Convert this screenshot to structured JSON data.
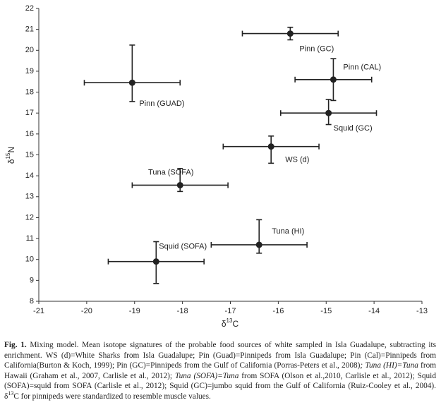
{
  "chart_data": {
    "type": "errorbar-scatter",
    "xlabel": {
      "symbol": "δ",
      "sup": "13",
      "rest": "C"
    },
    "ylabel": {
      "symbol": "δ",
      "sup": "15",
      "rest": "N"
    },
    "xlim": [
      -21,
      -13
    ],
    "xticks": [
      -21,
      -20,
      -19,
      -18,
      -17,
      -16,
      -15,
      -14,
      -13
    ],
    "ylim": [
      8,
      22
    ],
    "yticks": [
      8,
      9,
      10,
      11,
      12,
      13,
      14,
      15,
      16,
      17,
      18,
      19,
      20,
      21,
      22
    ],
    "color": "#222222",
    "points": [
      {
        "name": "Pinn (GC)",
        "x": -15.75,
        "y": 20.8,
        "xerr": 1.0,
        "yerr_minus": 0.3,
        "yerr_plus": 0.3
      },
      {
        "name": "Pinn (CAL)",
        "x": -14.85,
        "y": 18.6,
        "xerr": 0.8,
        "yerr_minus": 1.0,
        "yerr_plus": 1.0
      },
      {
        "name": "Pinn (GUAD)",
        "x": -19.05,
        "y": 18.45,
        "xerr": 1.0,
        "yerr_minus": 0.9,
        "yerr_plus": 1.8
      },
      {
        "name": "Squid (GC)",
        "x": -14.95,
        "y": 17.0,
        "xerr": 1.0,
        "yerr_minus": 0.55,
        "yerr_plus": 0.65
      },
      {
        "name": "WS (d)",
        "x": -16.15,
        "y": 15.4,
        "xerr": 1.0,
        "yerr_minus": 0.8,
        "yerr_plus": 0.5
      },
      {
        "name": "Tuna (SOFA)",
        "x": -18.05,
        "y": 13.55,
        "xerr": 1.0,
        "yerr_minus": 0.3,
        "yerr_plus": 0.8
      },
      {
        "name": "Tuna (HI)",
        "x": -16.4,
        "y": 10.7,
        "xerr": 1.0,
        "yerr_minus": 0.4,
        "yerr_plus": 1.2
      },
      {
        "name": "Squid (SOFA)",
        "x": -18.55,
        "y": 9.9,
        "xerr": 1.0,
        "yerr_minus": 1.05,
        "yerr_plus": 0.95
      }
    ]
  },
  "caption": [
    {
      "style": "bold",
      "text": "Fig. 1."
    },
    {
      "style": "normal",
      "text": " Mixing model. Mean isotope signatures of the probable food sources of white sampled in Isla Guadalupe, subtracting its enrichment. WS (d)=White Sharks from Isla Guadalupe; Pin (Guad)=Pinnipeds from Isla Guadalupe; Pin (Cal)=Pinnipeds from California(Burton & Koch, 1999); Pin (GC)=Pinnipeds from the Gulf of California (Porras-Peters et al., 2008)"
    },
    {
      "style": "italic",
      "text": "; Tuna (HI)=Tuna"
    },
    {
      "style": "normal",
      "text": " from Hawaii (Graham et al., 2007, Carlisle et al., 2012); "
    },
    {
      "style": "italic",
      "text": "Tuna (SOFA)=Tuna"
    },
    {
      "style": "normal",
      "text": " from SOFA (Olson et al.,2010, Carlisle et al., 2012); Squid (SOFA)=squid from SOFA (Carlisle et al., 2012); Squid (GC)=jumbo squid from the Gulf of California (Ruiz-Cooley et al., 2004). δ"
    },
    {
      "style": "sup",
      "text": "13"
    },
    {
      "style": "normal",
      "text": "C for pinnipeds were standardized to  resemble muscle values."
    }
  ]
}
